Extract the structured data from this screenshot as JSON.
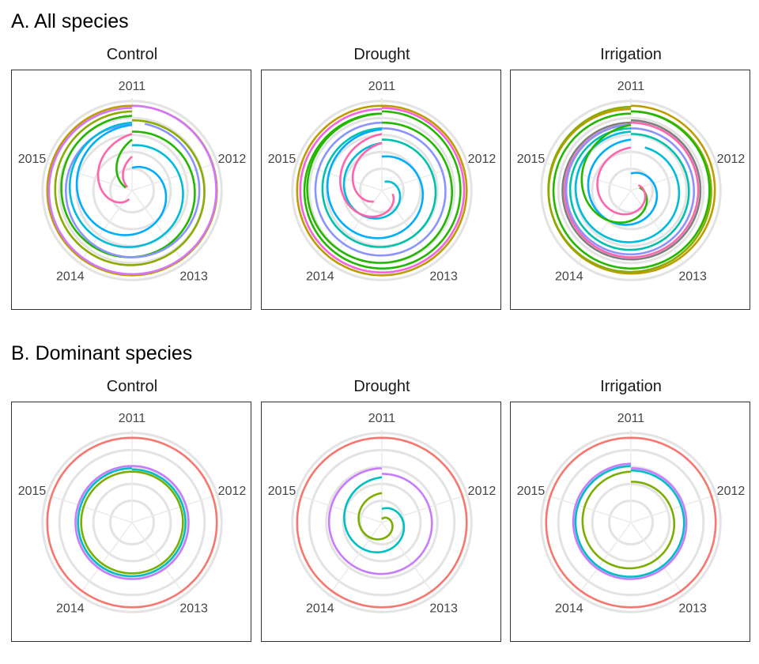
{
  "sections": [
    {
      "title": "A. All species",
      "facets": [
        "Control",
        "Drought",
        "Irrigation"
      ]
    },
    {
      "title": "B. Dominant species",
      "facets": [
        "Control",
        "Drought",
        "Irrigation"
      ]
    }
  ],
  "chart_data": [
    {
      "type": "line",
      "coord": "polar",
      "title": "A. All species",
      "theta_ticks": [
        "2011",
        "2012",
        "2013",
        "2014",
        "2015"
      ],
      "colors": [
        "#f8766d",
        "#e18a00",
        "#be9c00",
        "#8cab00",
        "#24b700",
        "#00be70",
        "#00c1ab",
        "#00bbda",
        "#00acfc",
        "#8b93ff",
        "#d575fe",
        "#f962dd",
        "#ff65ac",
        "#7f7f7f"
      ],
      "panels": [
        {
          "facet": "Control",
          "series": [
            {
              "color": "#be9c00",
              "start": 0.0,
              "r0": 75,
              "r1": 75
            },
            {
              "color": "#8cab00",
              "start": 0.0,
              "r0": 62,
              "r1": 70
            },
            {
              "color": "#d575fe",
              "start": 0.0,
              "r0": 75,
              "r1": 73
            },
            {
              "color": "#24b700",
              "start": 0.0,
              "r0": 52,
              "r1": 66
            },
            {
              "color": "#8b93ff",
              "start": 0.03,
              "r0": 60,
              "r1": 58
            },
            {
              "color": "#00bbda",
              "start": 0.0,
              "r0": 40,
              "r1": 60
            },
            {
              "color": "#00acfc",
              "start": 0.0,
              "r0": 20,
              "r1": 58
            },
            {
              "color": "#ff65ac",
              "start": 0.55,
              "r0": 8,
              "r1": 50
            },
            {
              "color": "#24b700",
              "start": 0.82,
              "r0": 6,
              "r1": 45
            },
            {
              "color": "#ff65ac",
              "start": 0.85,
              "r0": 5,
              "r1": 30
            }
          ]
        },
        {
          "facet": "Drought",
          "series": [
            {
              "color": "#be9c00",
              "start": 0.0,
              "r0": 75,
              "r1": 75
            },
            {
              "color": "#f962dd",
              "start": 0.0,
              "r0": 73,
              "r1": 72
            },
            {
              "color": "#24b700",
              "start": 0.0,
              "r0": 70,
              "r1": 68
            },
            {
              "color": "#24b700",
              "start": 0.0,
              "r0": 60,
              "r1": 68
            },
            {
              "color": "#8b93ff",
              "start": 0.0,
              "r0": 55,
              "r1": 60
            },
            {
              "color": "#00c1ab",
              "start": 0.0,
              "r0": 45,
              "r1": 55
            },
            {
              "color": "#00acfc",
              "start": 0.0,
              "r0": 30,
              "r1": 54
            },
            {
              "color": "#00bbda",
              "start": 0.05,
              "r0": 8,
              "r1": 42
            },
            {
              "color": "#ff65ac",
              "start": 0.3,
              "r0": 10,
              "r1": 50
            },
            {
              "color": "#ff65ac",
              "start": 0.6,
              "r0": 12,
              "r1": 42
            }
          ]
        },
        {
          "facet": "Irrigation",
          "series": [
            {
              "color": "#be9c00",
              "start": 0.0,
              "r0": 75,
              "r1": 72
            },
            {
              "color": "#8cab00",
              "start": 0.0,
              "r0": 70,
              "r1": 74
            },
            {
              "color": "#24b700",
              "start": 0.0,
              "r0": 70,
              "r1": 68
            },
            {
              "color": "#7f7f7f",
              "start": 0.0,
              "r0": 62,
              "r1": 60
            },
            {
              "color": "#ff65ac",
              "start": 0.0,
              "r0": 60,
              "r1": 58
            },
            {
              "color": "#8b93ff",
              "start": 0.0,
              "r0": 55,
              "r1": 58
            },
            {
              "color": "#00c1ab",
              "start": 0.0,
              "r0": 50,
              "r1": 55
            },
            {
              "color": "#00bbda",
              "start": 0.05,
              "r0": 40,
              "r1": 52
            },
            {
              "color": "#00acfc",
              "start": 0.0,
              "r0": 15,
              "r1": 45
            },
            {
              "color": "#24b700",
              "start": 0.2,
              "r0": 8,
              "r1": 58
            },
            {
              "color": "#ff65ac",
              "start": 0.15,
              "r0": 8,
              "r1": 38
            }
          ]
        }
      ]
    },
    {
      "type": "line",
      "coord": "polar",
      "title": "B. Dominant species",
      "theta_ticks": [
        "2011",
        "2012",
        "2013",
        "2014",
        "2015"
      ],
      "colors": [
        "#f8766d",
        "#7cae00",
        "#00bfc4",
        "#c77cff"
      ],
      "panels": [
        {
          "facet": "Control",
          "series": [
            {
              "color": "#f8766d",
              "start": 0.0,
              "r0": 75,
              "r1": 75
            },
            {
              "color": "#c77cff",
              "start": 0.0,
              "r0": 50,
              "r1": 50
            },
            {
              "color": "#00bfc4",
              "start": 0.0,
              "r0": 47,
              "r1": 48
            },
            {
              "color": "#7cae00",
              "start": 0.0,
              "r0": 45,
              "r1": 45
            }
          ]
        },
        {
          "facet": "Drought",
          "series": [
            {
              "color": "#f8766d",
              "start": 0.0,
              "r0": 75,
              "r1": 75
            },
            {
              "color": "#c77cff",
              "start": 0.0,
              "r0": 43,
              "r1": 48
            },
            {
              "color": "#00bfc4",
              "start": 0.0,
              "r0": 12,
              "r1": 40
            },
            {
              "color": "#7cae00",
              "start": 0.0,
              "r0": 3,
              "r1": 26
            }
          ]
        },
        {
          "facet": "Irrigation",
          "series": [
            {
              "color": "#f8766d",
              "start": 0.0,
              "r0": 75,
              "r1": 75
            },
            {
              "color": "#c77cff",
              "start": 0.0,
              "r0": 48,
              "r1": 52
            },
            {
              "color": "#00bfc4",
              "start": 0.0,
              "r0": 46,
              "r1": 50
            },
            {
              "color": "#7cae00",
              "start": 0.0,
              "r0": 36,
              "r1": 45
            }
          ]
        }
      ]
    }
  ]
}
